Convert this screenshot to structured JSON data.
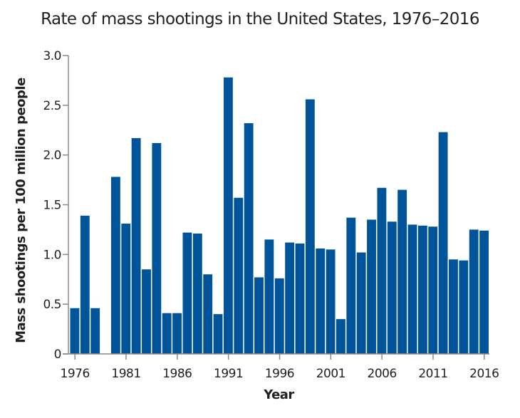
{
  "chart_data": {
    "type": "bar",
    "title": "Rate of mass shootings in the United States, 1976–2016",
    "xlabel": "Year",
    "ylabel": "Mass shootings per 100 million people",
    "ylim": [
      0,
      3.0
    ],
    "yticks": [
      "0",
      "0.5",
      "1.0",
      "1.5",
      "2.0",
      "2.5",
      "3.0"
    ],
    "ytick_values": [
      0,
      0.5,
      1.0,
      1.5,
      2.0,
      2.5,
      3.0
    ],
    "xticks": [
      "1976",
      "1981",
      "1986",
      "1991",
      "1996",
      "2001",
      "2006",
      "2011",
      "2016"
    ],
    "grid": false,
    "bar_color": "#00559a",
    "categories": [
      "1976",
      "1977",
      "1978",
      "1979",
      "1980",
      "1981",
      "1982",
      "1983",
      "1984",
      "1985",
      "1986",
      "1987",
      "1988",
      "1989",
      "1990",
      "1991",
      "1992",
      "1993",
      "1994",
      "1995",
      "1996",
      "1997",
      "1998",
      "1999",
      "2000",
      "2001",
      "2002",
      "2003",
      "2004",
      "2005",
      "2006",
      "2007",
      "2008",
      "2009",
      "2010",
      "2011",
      "2012",
      "2013",
      "2014",
      "2015",
      "2016"
    ],
    "values": [
      0.46,
      1.39,
      0.46,
      0,
      1.78,
      1.31,
      2.17,
      0.85,
      2.12,
      0.41,
      0.41,
      1.22,
      1.21,
      0.8,
      0.4,
      2.78,
      1.57,
      2.32,
      0.77,
      1.15,
      0.76,
      1.12,
      1.11,
      2.56,
      1.06,
      1.05,
      0.35,
      1.37,
      1.02,
      1.35,
      1.67,
      1.33,
      1.65,
      1.3,
      1.29,
      1.28,
      2.23,
      0.95,
      0.94,
      1.25,
      1.24
    ]
  }
}
